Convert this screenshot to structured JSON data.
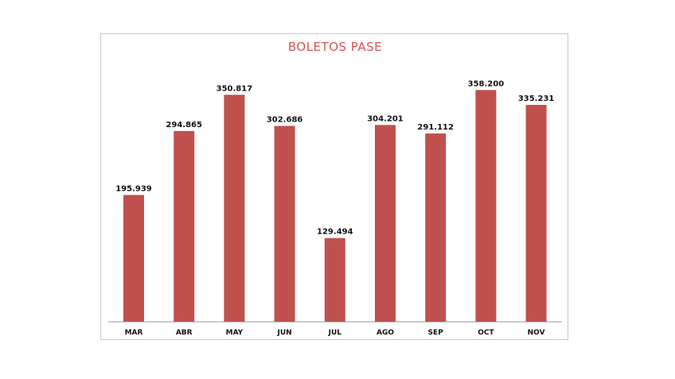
{
  "chart_data": {
    "type": "bar",
    "title": "BOLETOS PASE",
    "categories": [
      "MAR",
      "ABR",
      "MAY",
      "JUN",
      "JUL",
      "AGO",
      "SEP",
      "OCT",
      "NOV"
    ],
    "values": [
      195939,
      294865,
      350817,
      302686,
      129494,
      304201,
      291112,
      358200,
      335231
    ],
    "value_labels": [
      "195.939",
      "294.865",
      "350.817",
      "302.686",
      "129.494",
      "304.201",
      "291.112",
      "358.200",
      "335.231"
    ],
    "xlabel": "",
    "ylabel": "",
    "ylim": [
      0,
      420000
    ],
    "grid": false,
    "legend": "none",
    "bar_color": "#c0504d",
    "axis_color": "#999999"
  }
}
